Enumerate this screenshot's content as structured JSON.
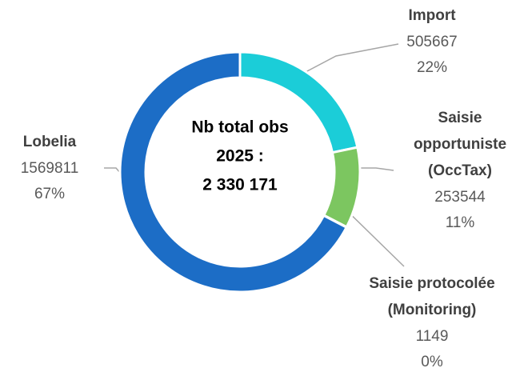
{
  "chart_data": {
    "type": "pie",
    "center_text": [
      "Nb total obs",
      "2025 :",
      "2 330 171"
    ],
    "categories": [
      [
        "Import"
      ],
      [
        "Saisie",
        "opportuniste",
        "(OccTax)"
      ],
      [
        "Saisie protocolée",
        "(Monitoring)"
      ],
      [
        "Lobelia"
      ]
    ],
    "values": [
      505667,
      253544,
      1149,
      1569811
    ],
    "percentages": [
      22,
      11,
      0,
      67
    ],
    "percentage_labels": [
      "22%",
      "11%",
      "0%",
      "67%"
    ],
    "colors": [
      "#1bcdd8",
      "#7cc660",
      "#9a9a9a",
      "#1c6dc6"
    ]
  }
}
